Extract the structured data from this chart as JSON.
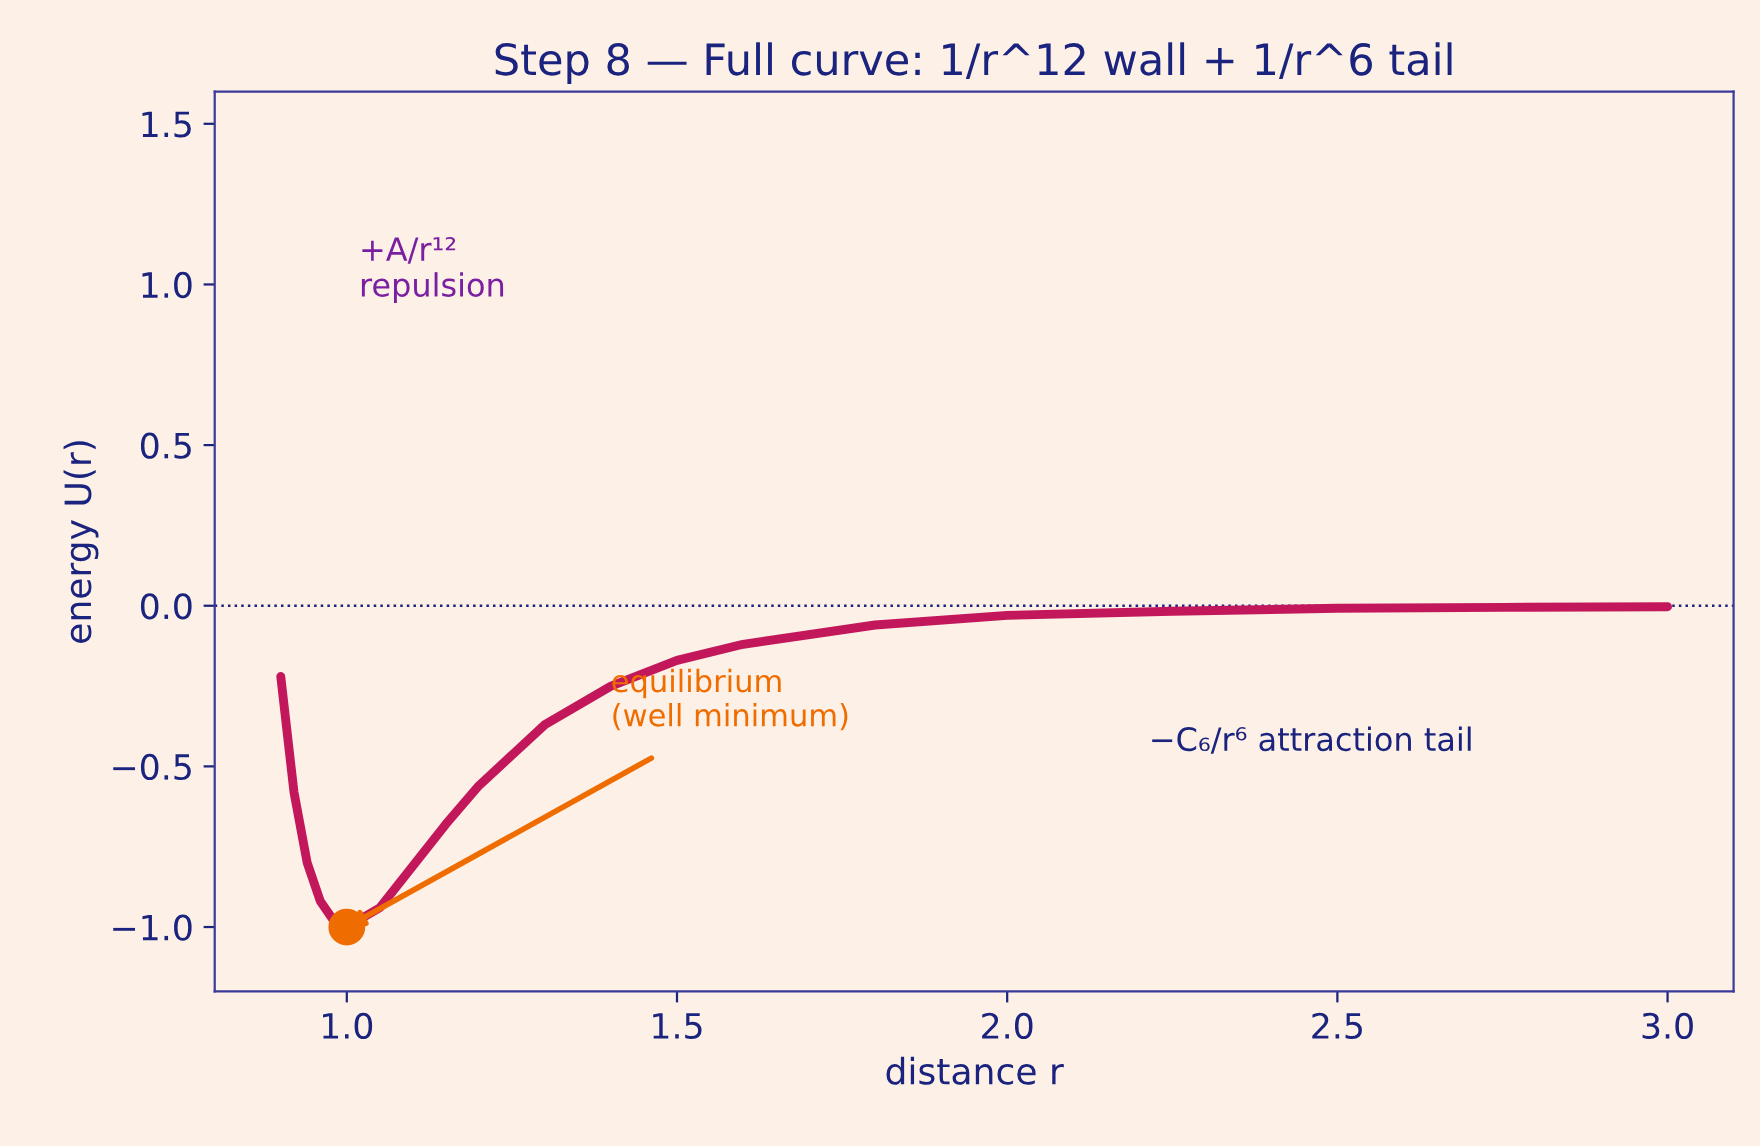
{
  "chart_data": {
    "type": "line",
    "title": "Step 8 — Full curve: 1/r^12 wall + 1/r^6 tail",
    "xlabel": "distance r",
    "ylabel": "energy U(r)",
    "xlim": [
      0.8,
      3.1
    ],
    "ylim": [
      -1.2,
      1.6
    ],
    "xticks": [
      {
        "value": 1.0,
        "label": "1.0"
      },
      1.5,
      {
        "value": 2.0,
        "label": "2.0"
      },
      2.5,
      {
        "value": 3.0,
        "label": "3.0"
      }
    ],
    "yticks": [
      {
        "value": -1.0,
        "label": "−1.0"
      },
      {
        "value": -0.5,
        "label": "−0.5"
      },
      {
        "value": 0.0,
        "label": "0.0"
      },
      0.5,
      {
        "value": 1.0,
        "label": "1.0"
      },
      1.5
    ],
    "grid": false,
    "legend": false,
    "series": [
      {
        "color": "#c2185b",
        "x": [
          0.9,
          0.92,
          0.94,
          0.96,
          0.98,
          1.0,
          1.05,
          1.1,
          1.15,
          1.2,
          1.3,
          1.4,
          1.5,
          1.6,
          1.8,
          2.0,
          2.25,
          2.5,
          2.75,
          3.0
        ],
        "values": [
          -0.22,
          -0.58,
          -0.8,
          -0.92,
          -0.98,
          -1.0,
          -0.94,
          -0.81,
          -0.68,
          -0.56,
          -0.37,
          -0.25,
          -0.17,
          -0.12,
          -0.06,
          -0.03,
          -0.017,
          -0.008,
          -0.005,
          -0.003
        ]
      },
      {
        "type": "scatter",
        "color": "#ef6c00",
        "marker": "circle",
        "x": [
          1.0
        ],
        "values": [
          -1.0
        ]
      }
    ],
    "ref_lines": [
      {
        "axis": "y",
        "value": 0.0,
        "color": "#1a237e",
        "line_style": "dotted"
      }
    ],
    "annotations": [
      "+A/r¹²\nrepulsion",
      {
        "text": "equilibrium\n(well minimum)",
        "x": 1.0,
        "y": -1.0
      },
      "−C₆/r⁶ attraction tail"
    ]
  }
}
